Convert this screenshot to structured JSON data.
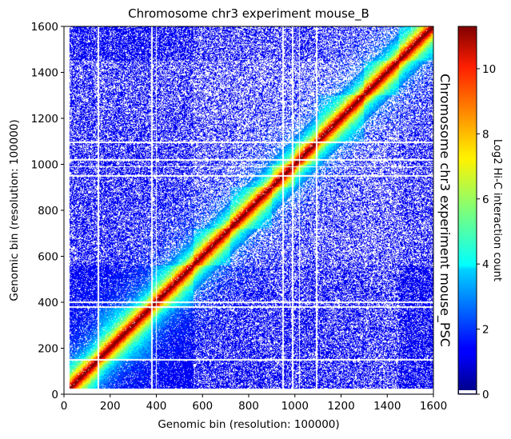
{
  "chart_data": {
    "type": "heatmap",
    "title": "Chromosome chr3 experiment mouse_B",
    "side_title": "Chromosome chr3 experiment mouse_PSC",
    "xlabel": "Genomic bin (resolution: 100000)",
    "ylabel": "Genomic bin (resolution: 100000)",
    "xlim": [
      0,
      1600
    ],
    "ylim": [
      0,
      1600
    ],
    "xticks": [
      0,
      200,
      400,
      600,
      800,
      1000,
      1200,
      1400,
      1600
    ],
    "yticks": [
      0,
      200,
      400,
      600,
      800,
      1000,
      1200,
      1400,
      1600
    ],
    "colorbar": {
      "label": "Log2 Hi-C interaction count",
      "colormap": "jet",
      "range": [
        0,
        11.3
      ],
      "ticks": [
        0,
        2,
        4,
        6,
        8,
        10
      ],
      "zero_color": "#ffffff"
    },
    "matrix_layout": "upper-left triangle = mouse_B, lower-right triangle = mouse_PSC",
    "diagonal_value": 9,
    "matrix_bins": 1600,
    "gap_rows": [
      150,
      380,
      400,
      950,
      990,
      1020,
      1095
    ],
    "domain_boundaries": [
      150,
      380,
      560,
      720,
      900,
      1000,
      1100,
      1300,
      1450
    ]
  }
}
